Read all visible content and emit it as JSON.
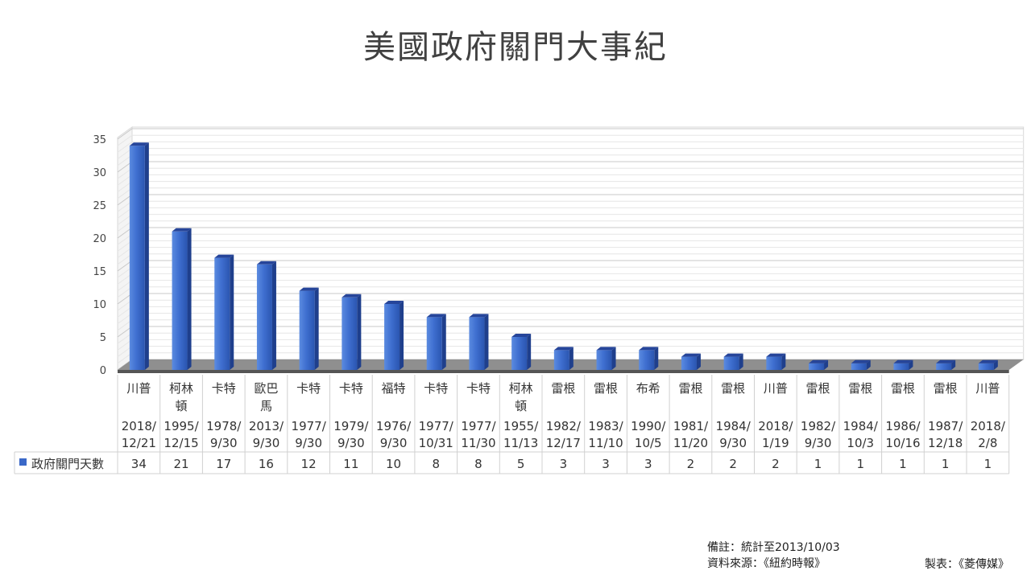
{
  "chart_data": {
    "type": "bar",
    "title": "美國政府關門大事紀",
    "categories": [
      {
        "president": [
          "川普"
        ],
        "date": [
          "2018/",
          "12/21"
        ]
      },
      {
        "president": [
          "柯林",
          "頓"
        ],
        "date": [
          "1995/",
          "12/15"
        ]
      },
      {
        "president": [
          "卡特"
        ],
        "date": [
          "1978/",
          "9/30"
        ]
      },
      {
        "president": [
          "歐巴",
          "馬"
        ],
        "date": [
          "2013/",
          "9/30"
        ]
      },
      {
        "president": [
          "卡特"
        ],
        "date": [
          "1977/",
          "9/30"
        ]
      },
      {
        "president": [
          "卡特"
        ],
        "date": [
          "1979/",
          "9/30"
        ]
      },
      {
        "president": [
          "福特"
        ],
        "date": [
          "1976/",
          "9/30"
        ]
      },
      {
        "president": [
          "卡特"
        ],
        "date": [
          "1977/",
          "10/31"
        ]
      },
      {
        "president": [
          "卡特"
        ],
        "date": [
          "1977/",
          "11/30"
        ]
      },
      {
        "president": [
          "柯林",
          "頓"
        ],
        "date": [
          "1955/",
          "11/13"
        ]
      },
      {
        "president": [
          "雷根"
        ],
        "date": [
          "1982/",
          "12/17"
        ]
      },
      {
        "president": [
          "雷根"
        ],
        "date": [
          "1983/",
          "11/10"
        ]
      },
      {
        "president": [
          "布希"
        ],
        "date": [
          "1990/",
          "10/5"
        ]
      },
      {
        "president": [
          "雷根"
        ],
        "date": [
          "1981/",
          "11/20"
        ]
      },
      {
        "president": [
          "雷根"
        ],
        "date": [
          "1984/",
          "9/30"
        ]
      },
      {
        "president": [
          "川普"
        ],
        "date": [
          "2018/",
          "1/19"
        ]
      },
      {
        "president": [
          "雷根"
        ],
        "date": [
          "1982/",
          "9/30"
        ]
      },
      {
        "president": [
          "雷根"
        ],
        "date": [
          "1984/",
          "10/3"
        ]
      },
      {
        "president": [
          "雷根"
        ],
        "date": [
          "1986/",
          "10/16"
        ]
      },
      {
        "president": [
          "雷根"
        ],
        "date": [
          "1987/",
          "12/18"
        ]
      },
      {
        "president": [
          "川普"
        ],
        "date": [
          "2018/",
          "2/8"
        ]
      }
    ],
    "series": [
      {
        "name": "政府關門天數",
        "values": [
          34,
          21,
          17,
          16,
          12,
          11,
          10,
          8,
          8,
          5,
          3,
          3,
          3,
          2,
          2,
          2,
          1,
          1,
          1,
          1,
          1
        ],
        "color": "#3a68c8"
      }
    ],
    "y_ticks": [
      "0",
      "5",
      "10",
      "15",
      "20",
      "25",
      "30",
      "35"
    ],
    "ylim": [
      0,
      35
    ],
    "grid": true,
    "data_table": true
  },
  "notes": {
    "remark": "備註：統計至2013/10/03",
    "source": "資料來源：《紐約時報》",
    "maker": "製表：《菱傳媒》"
  }
}
